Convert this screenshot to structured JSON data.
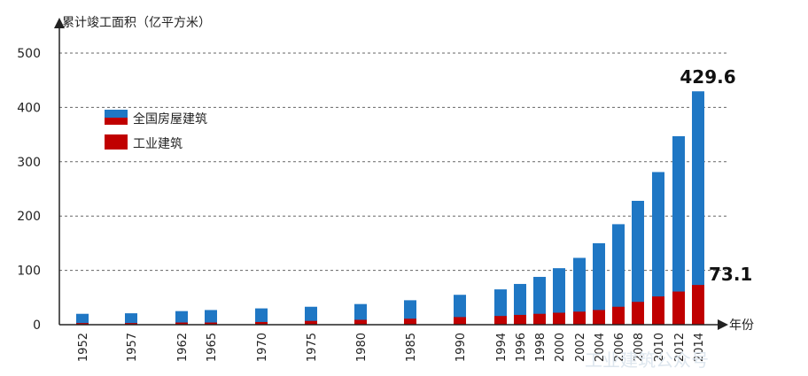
{
  "chart_data": {
    "type": "bar",
    "ylabel": "累计竣工面积（亿平方米）",
    "xlabel": "年份",
    "ylim": [
      0,
      500
    ],
    "yticks": [
      0,
      100,
      200,
      300,
      400,
      500
    ],
    "grid": "horizontal-dashed",
    "legend_position": "top-left",
    "categories": [
      "1952",
      "1957",
      "1962",
      "1965",
      "1970",
      "1975",
      "1980",
      "1985",
      "1990",
      "1994",
      "1996",
      "1998",
      "2000",
      "2002",
      "2004",
      "2006",
      "2008",
      "2010",
      "2012",
      "2014"
    ],
    "series": [
      {
        "name": "全国房屋建筑",
        "color": "#1f77c4",
        "values": [
          20,
          21,
          25,
          27,
          30,
          33,
          38,
          45,
          55,
          65,
          75,
          88,
          104,
          123,
          150,
          185,
          228,
          281,
          347,
          429.6
        ]
      },
      {
        "name": "工业建筑",
        "color": "#c00000",
        "values": [
          3,
          3,
          4,
          4,
          5,
          7,
          9,
          11,
          14,
          16,
          18,
          20,
          22,
          24,
          27,
          33,
          42,
          52,
          61,
          73.1
        ]
      }
    ],
    "annotations": [
      {
        "text": "429.6",
        "category": "2014",
        "value": 429.6
      },
      {
        "text": "73.1",
        "category": "2014",
        "value": 73.1
      }
    ]
  },
  "watermark": "工业建筑公众号"
}
